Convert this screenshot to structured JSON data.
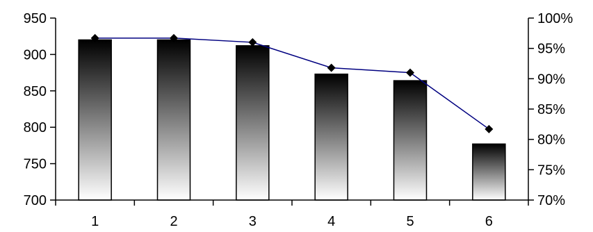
{
  "chart_data": {
    "type": "bar",
    "categories": [
      "1",
      "2",
      "3",
      "4",
      "5",
      "6"
    ],
    "bar_series": {
      "axis": "left",
      "values": [
        920,
        920,
        912,
        873,
        864,
        777
      ]
    },
    "line_series": {
      "axis": "right",
      "marker": "diamond",
      "values": [
        0.967,
        0.967,
        0.96,
        0.918,
        0.91,
        0.817
      ]
    },
    "left_axis": {
      "ylim": [
        700,
        950
      ],
      "ticks": [
        700,
        750,
        800,
        850,
        900,
        950
      ],
      "tick_labels": [
        "700",
        "750",
        "800",
        "850",
        "900",
        "950"
      ]
    },
    "right_axis": {
      "ylim": [
        0.7,
        1.0
      ],
      "ticks": [
        0.7,
        0.75,
        0.8,
        0.85,
        0.9,
        0.95,
        1.0
      ],
      "tick_labels": [
        "70%",
        "75%",
        "80%",
        "85%",
        "90%",
        "95%",
        "100%"
      ]
    },
    "grid": false,
    "legend": "none",
    "title": "",
    "xlabel": "",
    "ylabel": "",
    "colors": {
      "bar_top": "#000000",
      "bar_bottom": "#ffffff",
      "bar_outline": "#000000",
      "line": "#000080",
      "marker": "#000000",
      "axis": "#000000"
    }
  }
}
